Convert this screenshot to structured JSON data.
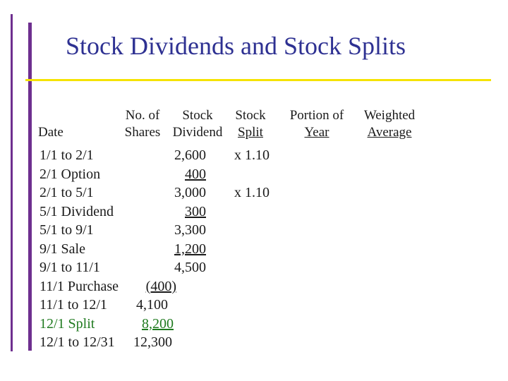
{
  "slide": {
    "title": "Stock Dividends and Stock Splits"
  },
  "headers": {
    "date": "Date",
    "shares_line1": "No. of",
    "shares_line2": "Shares",
    "dividend_line1": "Stock",
    "dividend_line2": "Dividend",
    "split_line1": "Stock",
    "split_line2": "Split",
    "portion_line1": "Portion of",
    "portion_line2": "Year",
    "weighted_line1": "Weighted",
    "weighted_line2": "Average"
  },
  "rows": [
    {
      "label": "1/1 to 2/1",
      "shares": "2,600",
      "split": "x 1.10"
    },
    {
      "label": "2/1 Option",
      "shares": "400"
    },
    {
      "label": "2/1 to 5/1",
      "shares": "3,000",
      "split": "x 1.10"
    },
    {
      "label": "5/1 Dividend",
      "shares": "300"
    },
    {
      "label": "5/1 to 9/1",
      "shares": "3,300"
    },
    {
      "label": "9/1 Sale",
      "shares": "1,200"
    },
    {
      "label": "9/1 to 11/1",
      "shares": "4,500"
    },
    {
      "label": "11/1 Purchase",
      "shares": "(400)"
    },
    {
      "label": "11/1 to 12/1",
      "shares": "4,100"
    },
    {
      "label": "12/1 Split",
      "shares": "8,200"
    },
    {
      "label": "12/1 to 12/31",
      "shares": "12,300"
    }
  ],
  "colors": {
    "title": "#2e3192",
    "accent_bar": "#6e2f8f",
    "rule": "#f5e300",
    "split_rows": "#1f7a1f"
  }
}
